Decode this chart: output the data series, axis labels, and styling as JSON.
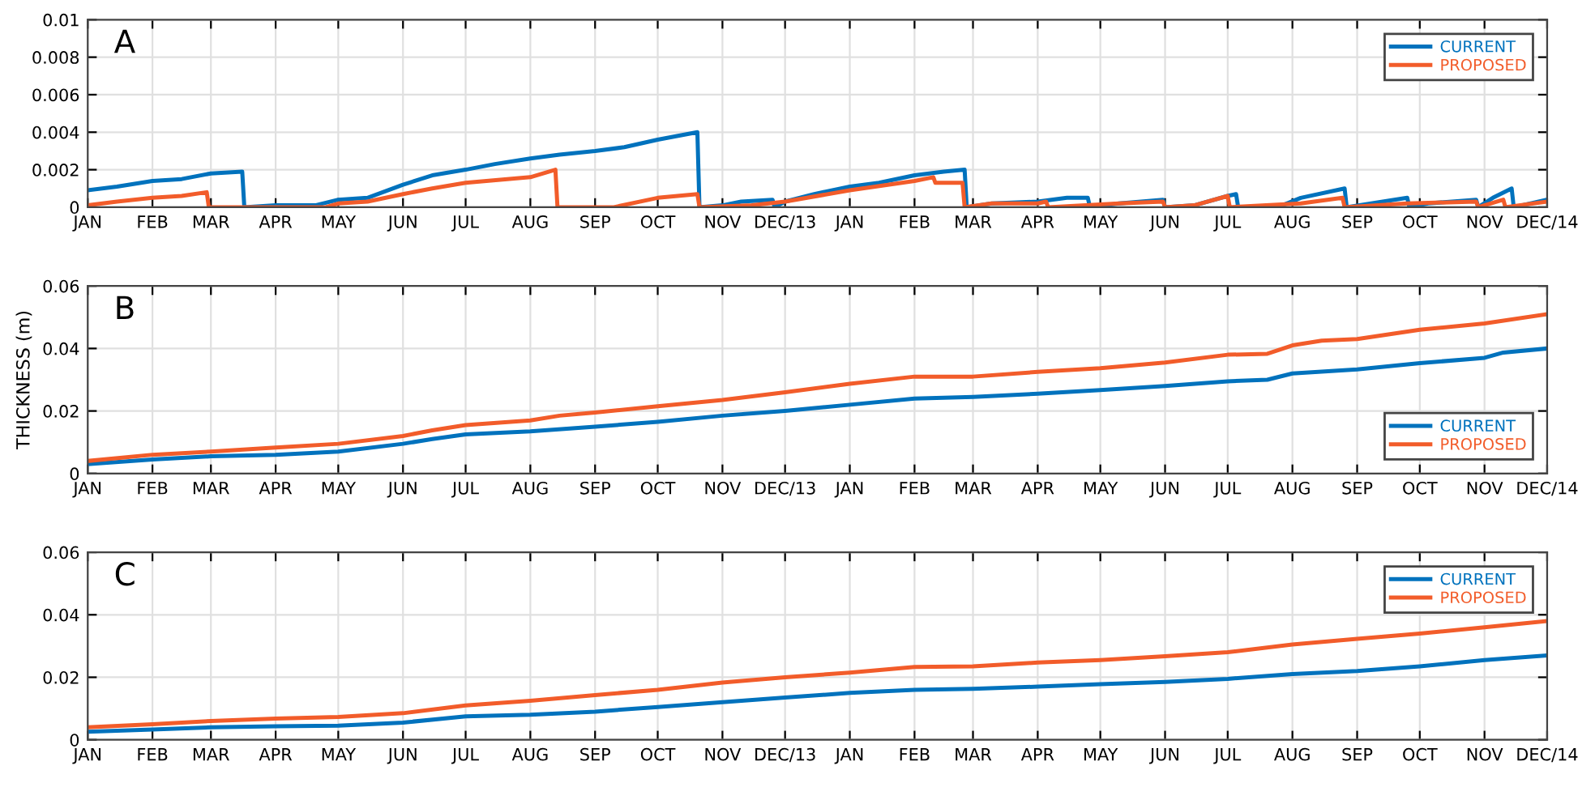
{
  "chart_data": [
    {
      "type": "line",
      "annotations": [
        "A"
      ],
      "xlim": [
        "2013-01-01",
        "2014-12-01"
      ],
      "xticks": [
        {
          "value": "2013-01-01",
          "label": "JAN"
        },
        {
          "value": "2013-02-01",
          "label": "FEB"
        },
        {
          "value": "2013-03-01",
          "label": "MAR"
        },
        {
          "value": "2013-04-01",
          "label": "APR"
        },
        {
          "value": "2013-05-01",
          "label": "MAY"
        },
        {
          "value": "2013-06-01",
          "label": "JUN"
        },
        {
          "value": "2013-07-01",
          "label": "JUL"
        },
        {
          "value": "2013-08-01",
          "label": "AUG"
        },
        {
          "value": "2013-09-01",
          "label": "SEP"
        },
        {
          "value": "2013-10-01",
          "label": "OCT"
        },
        {
          "value": "2013-11-01",
          "label": "NOV"
        },
        {
          "value": "2013-12-01",
          "label": "DEC/13"
        },
        {
          "value": "2014-01-01",
          "label": "JAN"
        },
        {
          "value": "2014-02-01",
          "label": "FEB"
        },
        {
          "value": "2014-03-01",
          "label": "MAR"
        },
        {
          "value": "2014-04-01",
          "label": "APR"
        },
        {
          "value": "2014-05-01",
          "label": "MAY"
        },
        {
          "value": "2014-06-01",
          "label": "JUN"
        },
        {
          "value": "2014-07-01",
          "label": "JUL"
        },
        {
          "value": "2014-08-01",
          "label": "AUG"
        },
        {
          "value": "2014-09-01",
          "label": "SEP"
        },
        {
          "value": "2014-10-01",
          "label": "OCT"
        },
        {
          "value": "2014-11-01",
          "label": "NOV"
        },
        {
          "value": "2014-12-01",
          "label": "DEC/14"
        }
      ],
      "ylim": [
        0,
        0.01
      ],
      "yticks": [
        0,
        0.002,
        0.004,
        0.006,
        0.008,
        0.01
      ],
      "grid": true,
      "legend": "top right",
      "series": [
        {
          "name": "CURRENT",
          "color": "#0072bd",
          "x": [
            "2013-01-01",
            "2013-01-15",
            "2013-02-01",
            "2013-02-15",
            "2013-03-01",
            "2013-03-16",
            "2013-03-17",
            "2013-04-01",
            "2013-04-20",
            "2013-05-01",
            "2013-05-15",
            "2013-06-01",
            "2013-06-15",
            "2013-07-01",
            "2013-07-15",
            "2013-08-01",
            "2013-08-15",
            "2013-09-01",
            "2013-09-15",
            "2013-10-01",
            "2013-10-20",
            "2013-10-21",
            "2013-11-01",
            "2013-11-10",
            "2013-11-25",
            "2013-11-26",
            "2013-12-01",
            "2013-12-15",
            "2014-01-01",
            "2014-01-15",
            "2014-02-01",
            "2014-02-15",
            "2014-02-25",
            "2014-02-26",
            "2014-03-10",
            "2014-04-01",
            "2014-04-15",
            "2014-04-25",
            "2014-04-26",
            "2014-05-10",
            "2014-05-31",
            "2014-06-01",
            "2014-06-15",
            "2014-07-01",
            "2014-07-05",
            "2014-07-06",
            "2014-07-25",
            "2014-08-05",
            "2014-08-26",
            "2014-08-27",
            "2014-09-25",
            "2014-09-26",
            "2014-10-05",
            "2014-10-28",
            "2014-10-29",
            "2014-11-05",
            "2014-11-14",
            "2014-11-15",
            "2014-12-01"
          ],
          "values": [
            0.0009,
            0.0011,
            0.0014,
            0.0015,
            0.0018,
            0.0019,
            0,
            0.0001,
            0.0001,
            0.0004,
            0.0005,
            0.0012,
            0.0017,
            0.002,
            0.0023,
            0.0026,
            0.0028,
            0.003,
            0.0032,
            0.0036,
            0.004,
            0,
            0.0001,
            0.0003,
            0.0004,
            0,
            0.0003,
            0.0007,
            0.0011,
            0.0013,
            0.0017,
            0.0019,
            0.002,
            0,
            0.0002,
            0.0003,
            0.0005,
            0.0005,
            0,
            0.0002,
            0.0004,
            0,
            0.0001,
            0.0006,
            0.0007,
            0,
            0,
            0.0005,
            0.001,
            0,
            0.0005,
            0,
            0.0002,
            0.0004,
            0,
            0.0005,
            0.001,
            0,
            0.0004
          ]
        },
        {
          "name": "PROPOSED",
          "color": "#f25c2a",
          "x": [
            "2013-01-01",
            "2013-01-15",
            "2013-02-01",
            "2013-02-15",
            "2013-02-27",
            "2013-02-28",
            "2013-04-01",
            "2013-04-25",
            "2013-05-01",
            "2013-05-15",
            "2013-06-01",
            "2013-06-15",
            "2013-07-01",
            "2013-08-01",
            "2013-08-13",
            "2013-08-14",
            "2013-09-10",
            "2013-10-01",
            "2013-10-20",
            "2013-10-21",
            "2013-11-15",
            "2013-12-01",
            "2014-01-01",
            "2014-02-01",
            "2014-02-10",
            "2014-02-11",
            "2014-02-24",
            "2014-02-25",
            "2014-03-10",
            "2014-04-01",
            "2014-04-05",
            "2014-04-06",
            "2014-05-10",
            "2014-05-31",
            "2014-06-01",
            "2014-06-15",
            "2014-07-01",
            "2014-07-02",
            "2014-08-05",
            "2014-08-25",
            "2014-08-26",
            "2014-09-25",
            "2014-10-28",
            "2014-10-29",
            "2014-11-10",
            "2014-11-11",
            "2014-12-01"
          ],
          "values": [
            0.0001,
            0.0003,
            0.0005,
            0.0006,
            0.0008,
            0,
            0,
            0,
            0.0002,
            0.0003,
            0.0007,
            0.001,
            0.0013,
            0.0016,
            0.002,
            0,
            0,
            0.0005,
            0.0007,
            0,
            0.0001,
            0.0003,
            0.0009,
            0.0014,
            0.0016,
            0.0013,
            0.0013,
            0,
            0.0002,
            0.0002,
            0.0003,
            0,
            0.0002,
            0.0003,
            0,
            0.0001,
            0.0006,
            0,
            0.0002,
            0.0005,
            0,
            0.0002,
            0.0003,
            0,
            0.0004,
            0,
            0.0003
          ]
        }
      ]
    },
    {
      "type": "line",
      "annotations": [
        "B"
      ],
      "ylabel": "THICKNESS (m)",
      "xlim": [
        "2013-01-01",
        "2014-12-01"
      ],
      "xticks": [
        {
          "value": "2013-01-01",
          "label": "JAN"
        },
        {
          "value": "2013-02-01",
          "label": "FEB"
        },
        {
          "value": "2013-03-01",
          "label": "MAR"
        },
        {
          "value": "2013-04-01",
          "label": "APR"
        },
        {
          "value": "2013-05-01",
          "label": "MAY"
        },
        {
          "value": "2013-06-01",
          "label": "JUN"
        },
        {
          "value": "2013-07-01",
          "label": "JUL"
        },
        {
          "value": "2013-08-01",
          "label": "AUG"
        },
        {
          "value": "2013-09-01",
          "label": "SEP"
        },
        {
          "value": "2013-10-01",
          "label": "OCT"
        },
        {
          "value": "2013-11-01",
          "label": "NOV"
        },
        {
          "value": "2013-12-01",
          "label": "DEC/13"
        },
        {
          "value": "2014-01-01",
          "label": "JAN"
        },
        {
          "value": "2014-02-01",
          "label": "FEB"
        },
        {
          "value": "2014-03-01",
          "label": "MAR"
        },
        {
          "value": "2014-04-01",
          "label": "APR"
        },
        {
          "value": "2014-05-01",
          "label": "MAY"
        },
        {
          "value": "2014-06-01",
          "label": "JUN"
        },
        {
          "value": "2014-07-01",
          "label": "JUL"
        },
        {
          "value": "2014-08-01",
          "label": "AUG"
        },
        {
          "value": "2014-09-01",
          "label": "SEP"
        },
        {
          "value": "2014-10-01",
          "label": "OCT"
        },
        {
          "value": "2014-11-01",
          "label": "NOV"
        },
        {
          "value": "2014-12-01",
          "label": "DEC/14"
        }
      ],
      "ylim": [
        0,
        0.06
      ],
      "yticks": [
        0,
        0.02,
        0.04,
        0.06
      ],
      "grid": true,
      "legend": "bottom right",
      "series": [
        {
          "name": "CURRENT",
          "color": "#0072bd",
          "x": [
            "2013-01-01",
            "2013-02-01",
            "2013-03-01",
            "2013-04-01",
            "2013-05-01",
            "2013-06-01",
            "2013-06-15",
            "2013-07-01",
            "2013-08-01",
            "2013-09-01",
            "2013-10-01",
            "2013-11-01",
            "2013-12-01",
            "2014-01-01",
            "2014-02-01",
            "2014-03-01",
            "2014-04-01",
            "2014-05-01",
            "2014-06-01",
            "2014-07-01",
            "2014-07-20",
            "2014-08-01",
            "2014-09-01",
            "2014-10-01",
            "2014-11-01",
            "2014-11-10",
            "2014-12-01"
          ],
          "values": [
            0.003,
            0.0045,
            0.0055,
            0.006,
            0.007,
            0.0095,
            0.011,
            0.0125,
            0.0135,
            0.015,
            0.0165,
            0.0185,
            0.02,
            0.022,
            0.024,
            0.0245,
            0.0255,
            0.0267,
            0.028,
            0.0295,
            0.03,
            0.032,
            0.0333,
            0.0353,
            0.037,
            0.0387,
            0.04
          ]
        },
        {
          "name": "PROPOSED",
          "color": "#f25c2a",
          "x": [
            "2013-01-01",
            "2013-02-01",
            "2013-03-01",
            "2013-04-01",
            "2013-05-01",
            "2013-06-01",
            "2013-06-15",
            "2013-07-01",
            "2013-08-01",
            "2013-08-15",
            "2013-09-01",
            "2013-10-01",
            "2013-11-01",
            "2013-12-01",
            "2014-01-01",
            "2014-02-01",
            "2014-03-01",
            "2014-04-01",
            "2014-05-01",
            "2014-06-01",
            "2014-07-01",
            "2014-07-20",
            "2014-08-01",
            "2014-08-15",
            "2014-09-01",
            "2014-10-01",
            "2014-11-01",
            "2014-12-01"
          ],
          "values": [
            0.004,
            0.006,
            0.007,
            0.0083,
            0.0095,
            0.012,
            0.0138,
            0.0155,
            0.017,
            0.0185,
            0.0195,
            0.0215,
            0.0235,
            0.026,
            0.0287,
            0.031,
            0.031,
            0.0325,
            0.0337,
            0.0355,
            0.038,
            0.0383,
            0.041,
            0.0425,
            0.043,
            0.046,
            0.048,
            0.051
          ]
        }
      ]
    },
    {
      "type": "line",
      "annotations": [
        "C"
      ],
      "xlim": [
        "2013-01-01",
        "2014-12-01"
      ],
      "xticks": [
        {
          "value": "2013-01-01",
          "label": "JAN"
        },
        {
          "value": "2013-02-01",
          "label": "FEB"
        },
        {
          "value": "2013-03-01",
          "label": "MAR"
        },
        {
          "value": "2013-04-01",
          "label": "APR"
        },
        {
          "value": "2013-05-01",
          "label": "MAY"
        },
        {
          "value": "2013-06-01",
          "label": "JUN"
        },
        {
          "value": "2013-07-01",
          "label": "JUL"
        },
        {
          "value": "2013-08-01",
          "label": "AUG"
        },
        {
          "value": "2013-09-01",
          "label": "SEP"
        },
        {
          "value": "2013-10-01",
          "label": "OCT"
        },
        {
          "value": "2013-11-01",
          "label": "NOV"
        },
        {
          "value": "2013-12-01",
          "label": "DEC/13"
        },
        {
          "value": "2014-01-01",
          "label": "JAN"
        },
        {
          "value": "2014-02-01",
          "label": "FEB"
        },
        {
          "value": "2014-03-01",
          "label": "MAR"
        },
        {
          "value": "2014-04-01",
          "label": "APR"
        },
        {
          "value": "2014-05-01",
          "label": "MAY"
        },
        {
          "value": "2014-06-01",
          "label": "JUN"
        },
        {
          "value": "2014-07-01",
          "label": "JUL"
        },
        {
          "value": "2014-08-01",
          "label": "AUG"
        },
        {
          "value": "2014-09-01",
          "label": "SEP"
        },
        {
          "value": "2014-10-01",
          "label": "OCT"
        },
        {
          "value": "2014-11-01",
          "label": "NOV"
        },
        {
          "value": "2014-12-01",
          "label": "DEC/14"
        }
      ],
      "ylim": [
        0,
        0.06
      ],
      "yticks": [
        0,
        0.02,
        0.04,
        0.06
      ],
      "grid": true,
      "legend": "top right",
      "series": [
        {
          "name": "CURRENT",
          "color": "#0072bd",
          "x": [
            "2013-01-01",
            "2013-02-01",
            "2013-03-01",
            "2013-04-01",
            "2013-05-01",
            "2013-06-01",
            "2013-07-01",
            "2013-08-01",
            "2013-09-01",
            "2013-10-01",
            "2013-11-01",
            "2013-12-01",
            "2014-01-01",
            "2014-02-01",
            "2014-03-01",
            "2014-04-01",
            "2014-05-01",
            "2014-06-01",
            "2014-07-01",
            "2014-08-01",
            "2014-09-01",
            "2014-10-01",
            "2014-11-01",
            "2014-12-01"
          ],
          "values": [
            0.0026,
            0.0033,
            0.004,
            0.0043,
            0.0045,
            0.0055,
            0.0075,
            0.008,
            0.009,
            0.0105,
            0.012,
            0.0135,
            0.015,
            0.016,
            0.0163,
            0.017,
            0.0178,
            0.0185,
            0.0195,
            0.021,
            0.022,
            0.0235,
            0.0255,
            0.027
          ]
        },
        {
          "name": "PROPOSED",
          "color": "#f25c2a",
          "x": [
            "2013-01-01",
            "2013-02-01",
            "2013-03-01",
            "2013-04-01",
            "2013-05-01",
            "2013-06-01",
            "2013-07-01",
            "2013-08-01",
            "2013-09-01",
            "2013-10-01",
            "2013-11-01",
            "2013-12-01",
            "2014-01-01",
            "2014-02-01",
            "2014-03-01",
            "2014-04-01",
            "2014-05-01",
            "2014-06-01",
            "2014-07-01",
            "2014-08-01",
            "2014-09-01",
            "2014-10-01",
            "2014-11-01",
            "2014-12-01"
          ],
          "values": [
            0.004,
            0.005,
            0.006,
            0.0068,
            0.0073,
            0.0085,
            0.011,
            0.0125,
            0.0143,
            0.016,
            0.0183,
            0.02,
            0.0215,
            0.0233,
            0.0235,
            0.0247,
            0.0255,
            0.0267,
            0.028,
            0.0305,
            0.0323,
            0.034,
            0.036,
            0.038
          ]
        }
      ]
    }
  ]
}
